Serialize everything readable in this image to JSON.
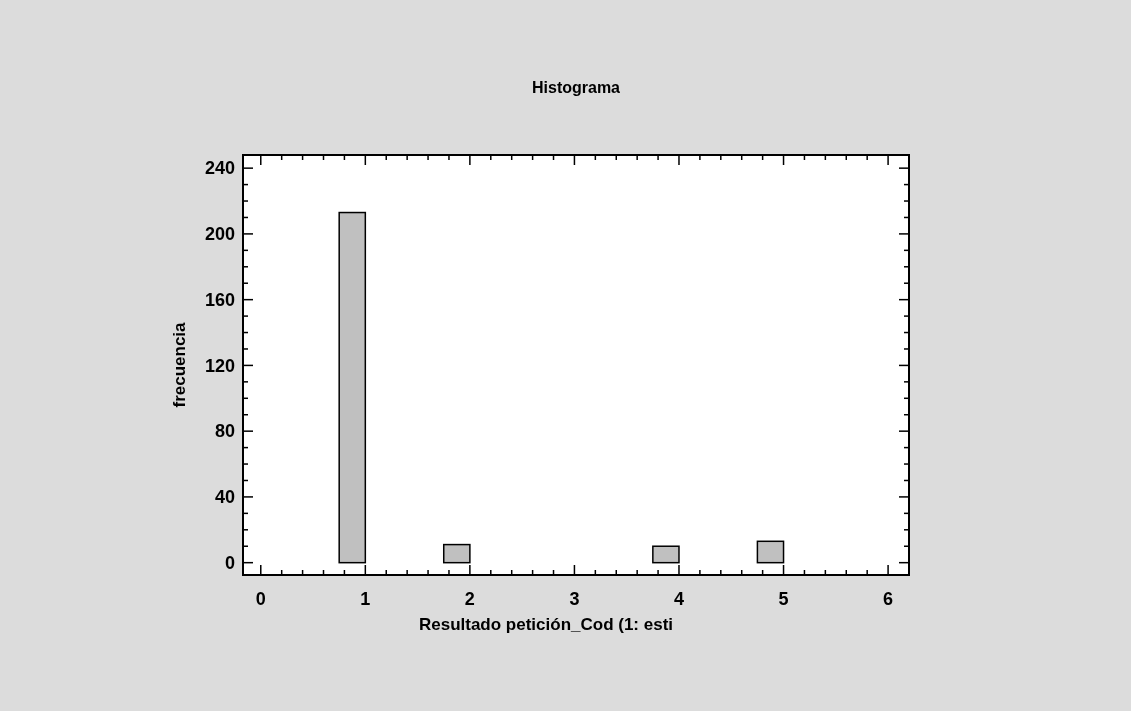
{
  "chart_data": {
    "type": "histogram",
    "title": "Histograma",
    "xlabel": "Resultado petición_Cod (1: esti",
    "ylabel": "frecuencia",
    "bins": [
      0,
      0.25,
      0.5,
      0.75,
      1,
      1.25,
      1.5,
      1.75,
      2,
      2.25,
      2.5,
      2.75,
      3,
      3.25,
      3.5,
      3.75,
      4,
      4.25,
      4.5,
      4.75,
      5,
      5.25,
      5.5,
      5.75,
      6
    ],
    "values": [
      0,
      0,
      0,
      213,
      0,
      0,
      0,
      11,
      0,
      0,
      0,
      0,
      0,
      0,
      0,
      10,
      0,
      0,
      0,
      13,
      0,
      0,
      0,
      0
    ],
    "color": "#c0c0c0",
    "xlim": [
      -0.17,
      6.2
    ],
    "xticks": [
      0,
      {
        "value": 0.2,
        "label": null
      },
      {
        "value": 0.4,
        "label": null
      },
      {
        "value": 0.6,
        "label": null
      },
      {
        "value": 0.8,
        "label": null
      },
      1,
      {
        "value": 1.2,
        "label": null
      },
      {
        "value": 1.4,
        "label": null
      },
      {
        "value": 1.6,
        "label": null
      },
      {
        "value": 1.8,
        "label": null
      },
      2,
      {
        "value": 2.2,
        "label": null
      },
      {
        "value": 2.4,
        "label": null
      },
      {
        "value": 2.6,
        "label": null
      },
      {
        "value": 2.8,
        "label": null
      },
      3,
      {
        "value": 3.2,
        "label": null
      },
      {
        "value": 3.4,
        "label": null
      },
      {
        "value": 3.6,
        "label": null
      },
      {
        "value": 3.8,
        "label": null
      },
      4,
      {
        "value": 4.2,
        "label": null
      },
      {
        "value": 4.4,
        "label": null
      },
      {
        "value": 4.6,
        "label": null
      },
      {
        "value": 4.8,
        "label": null
      },
      5,
      {
        "value": 5.2,
        "label": null
      },
      {
        "value": 5.4,
        "label": null
      },
      {
        "value": 5.6,
        "label": null
      },
      {
        "value": 5.8,
        "label": null
      },
      6
    ],
    "ylim": [
      -7.5,
      248
    ],
    "yticks": [
      0,
      {
        "value": 10,
        "label": null
      },
      {
        "value": 20,
        "label": null
      },
      {
        "value": 30,
        "label": null
      },
      40,
      {
        "value": 50,
        "label": null
      },
      {
        "value": 60,
        "label": null
      },
      {
        "value": 70,
        "label": null
      },
      80,
      {
        "value": 90,
        "label": null
      },
      {
        "value": 100,
        "label": null
      },
      {
        "value": 110,
        "label": null
      },
      120,
      {
        "value": 130,
        "label": null
      },
      {
        "value": 140,
        "label": null
      },
      {
        "value": 150,
        "label": null
      },
      160,
      {
        "value": 170,
        "label": null
      },
      {
        "value": 180,
        "label": null
      },
      {
        "value": 190,
        "label": null
      },
      200,
      {
        "value": 210,
        "label": null
      },
      {
        "value": 220,
        "label": null
      },
      {
        "value": 230,
        "label": null
      },
      240
    ],
    "grid": false
  }
}
